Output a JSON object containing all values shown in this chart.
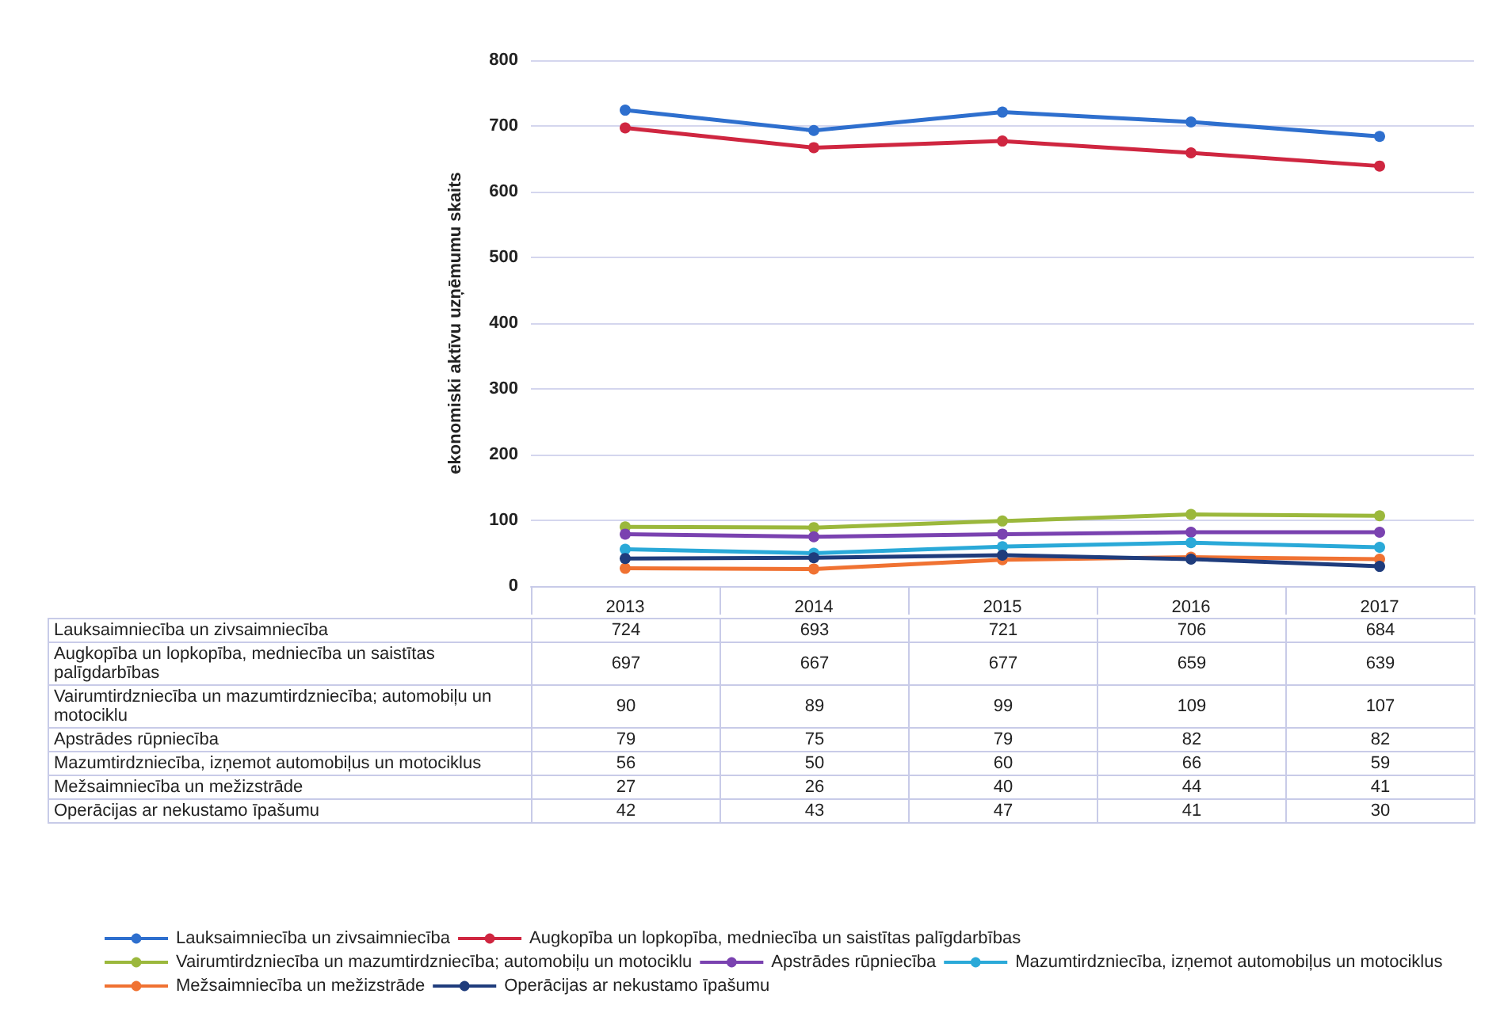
{
  "chart_data": {
    "type": "line",
    "ylabel": "ekonomiski aktīvu uzņēmumu skaits",
    "categories": [
      "2013",
      "2014",
      "2015",
      "2016",
      "2017"
    ],
    "ylim": [
      0,
      800
    ],
    "yticks": [
      0,
      100,
      200,
      300,
      400,
      500,
      600,
      700,
      800
    ],
    "grid": "y",
    "legend": "bottom",
    "marker": "circle",
    "data_labels": true,
    "series": [
      {
        "name": "Lauksaimniecība un zivsaimniecība",
        "color": "#2e6fce",
        "values": [
          724,
          693,
          721,
          706,
          684
        ]
      },
      {
        "name": "Augkopība un lopkopība, medniecība un saistītas palīgdarbības",
        "color": "#cf2640",
        "values": [
          697,
          667,
          677,
          659,
          639
        ]
      },
      {
        "name": "Vairumtirdzniecība un mazumtirdzniecība; automobiļu un motociklu",
        "color": "#9bb83c",
        "values": [
          90,
          89,
          99,
          109,
          107
        ]
      },
      {
        "name": "Apstrādes rūpniecība",
        "color": "#7a42b0",
        "values": [
          79,
          75,
          79,
          82,
          82
        ]
      },
      {
        "name": "Mazumtirdzniecība, izņemot automobiļus un motociklus",
        "color": "#2aa9d8",
        "values": [
          56,
          50,
          60,
          66,
          59
        ]
      },
      {
        "name": "Mežsaimniecība un mežizstrāde",
        "color": "#f07232",
        "values": [
          27,
          26,
          40,
          44,
          41
        ]
      },
      {
        "name": "Operācijas ar nekustamo īpašumu",
        "color": "#1f3c7c",
        "values": [
          42,
          43,
          47,
          41,
          30
        ]
      }
    ]
  }
}
